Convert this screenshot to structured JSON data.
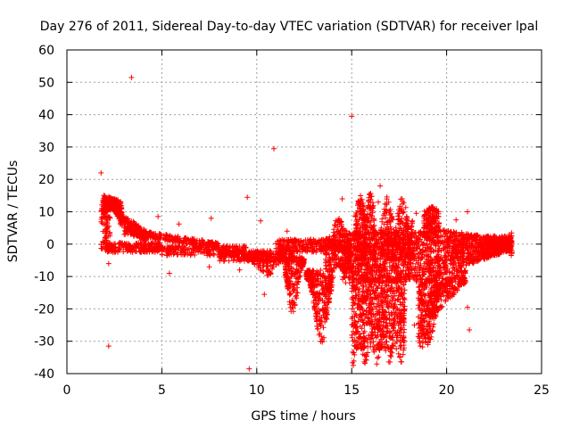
{
  "chart_data": {
    "type": "scatter",
    "title": "Day 276 of 2011, Sidereal Day-to-day VTEC variation (SDTVAR) for receiver lpal",
    "xlabel": "GPS time / hours",
    "ylabel": "SDTVAR / TECUs",
    "xlim": [
      0,
      25
    ],
    "ylim": [
      -40,
      60
    ],
    "x_ticks": [
      "0",
      "5",
      "10",
      "15",
      "20",
      "25"
    ],
    "y_ticks": [
      "60",
      "50",
      "40",
      "30",
      "20",
      "10",
      "0",
      "-10",
      "-20",
      "-30",
      "-40"
    ],
    "x_tick_values": [
      0,
      5,
      10,
      15,
      20,
      25
    ],
    "y_tick_values": [
      60,
      50,
      40,
      30,
      20,
      10,
      0,
      -10,
      -20,
      -30,
      -40
    ],
    "grid": true,
    "marker": "+",
    "color": "#ff0000",
    "outliers": [
      {
        "x": 1.8,
        "y": 22
      },
      {
        "x": 3.4,
        "y": 51.5
      },
      {
        "x": 2.2,
        "y": -31.5
      },
      {
        "x": 15.0,
        "y": 39.5
      },
      {
        "x": 10.9,
        "y": 29.5
      },
      {
        "x": 9.5,
        "y": 14.5
      },
      {
        "x": 9.6,
        "y": -38.5
      },
      {
        "x": 10.2,
        "y": 7.2
      },
      {
        "x": 10.4,
        "y": -15.5
      },
      {
        "x": 4.8,
        "y": 8.5
      },
      {
        "x": 5.9,
        "y": 6.2
      },
      {
        "x": 5.4,
        "y": -9.0
      },
      {
        "x": 7.5,
        "y": -7.0
      },
      {
        "x": 7.6,
        "y": 8.0
      },
      {
        "x": 11.6,
        "y": 4.0
      },
      {
        "x": 14.5,
        "y": 14.0
      },
      {
        "x": 16.5,
        "y": 18.0
      },
      {
        "x": 18.4,
        "y": 9.5
      },
      {
        "x": 18.5,
        "y": -28.5
      },
      {
        "x": 18.3,
        "y": -25.0
      },
      {
        "x": 21.2,
        "y": -26.5
      },
      {
        "x": 21.1,
        "y": 10.0
      },
      {
        "x": 21.1,
        "y": -19.5
      },
      {
        "x": 23.4,
        "y": -3.5
      },
      {
        "x": 16.4,
        "y": 13.0
      },
      {
        "x": 16.0,
        "y": -12.5
      },
      {
        "x": 20.5,
        "y": 7.5
      },
      {
        "x": 2.2,
        "y": -6.0
      },
      {
        "x": 9.1,
        "y": -8.0
      }
    ]
  }
}
